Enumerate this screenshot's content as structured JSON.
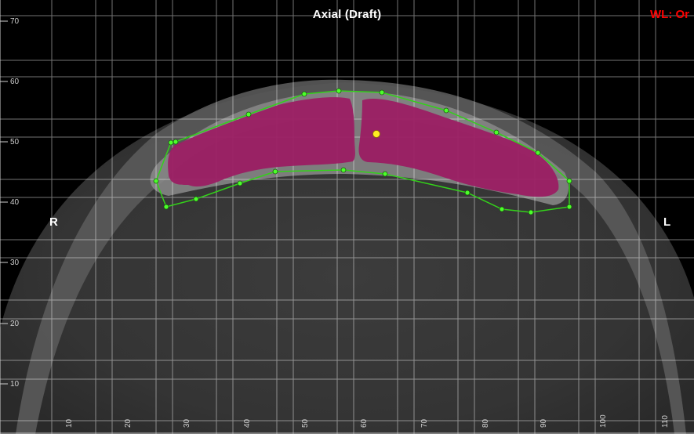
{
  "view": {
    "title": "Axial (Draft)",
    "window_level": "WL: Or",
    "orientation_right": "R",
    "orientation_left": "L"
  },
  "ruler": {
    "vertical_labels": [
      "70",
      "60",
      "50",
      "40",
      "30",
      "20",
      "10"
    ],
    "horizontal_labels": [
      "10",
      "20",
      "30",
      "40",
      "50",
      "60",
      "70",
      "80",
      "90",
      "100",
      "110"
    ]
  },
  "colors": {
    "segmentation_fill": "#9b1d63",
    "contour_line": "#33d11a",
    "control_point": "#4cff2a",
    "center_handle": "#ffee22",
    "grid_line": "#ffffff",
    "window_level_text": "#ff0000"
  },
  "icons": [
    "contour-control-point",
    "center-handle"
  ]
}
